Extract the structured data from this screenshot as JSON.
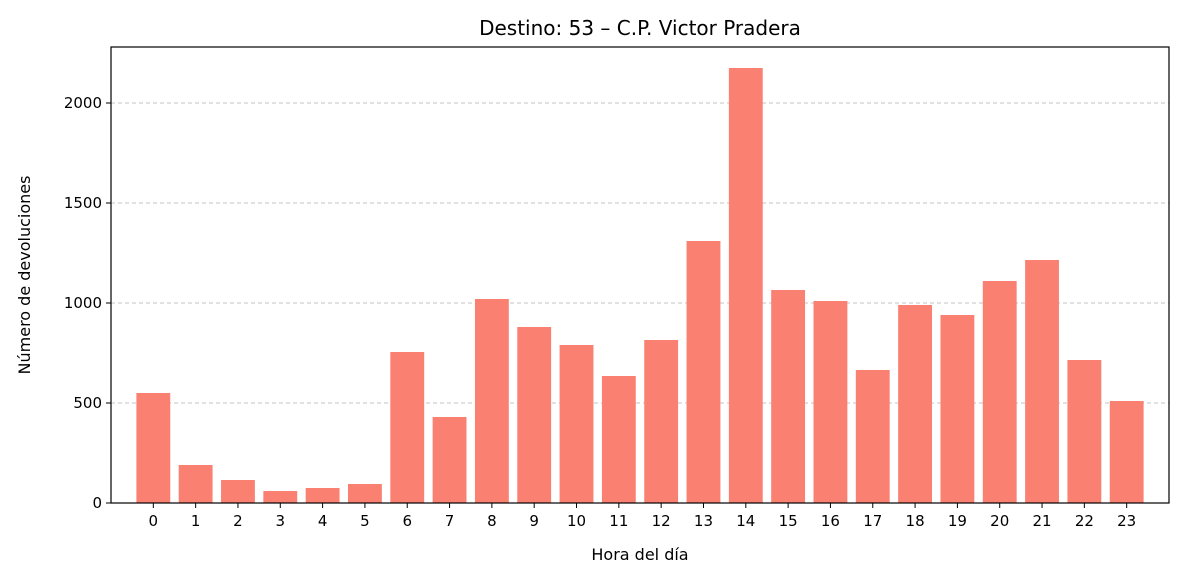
{
  "chart_data": {
    "type": "bar",
    "title": "Destino: 53 – C.P. Victor Pradera",
    "xlabel": "Hora del día",
    "ylabel": "Número de devoluciones",
    "categories": [
      "0",
      "1",
      "2",
      "3",
      "4",
      "5",
      "6",
      "7",
      "8",
      "9",
      "10",
      "11",
      "12",
      "13",
      "14",
      "15",
      "16",
      "17",
      "18",
      "19",
      "20",
      "21",
      "22",
      "23"
    ],
    "values": [
      550,
      190,
      115,
      60,
      75,
      95,
      755,
      430,
      1020,
      880,
      790,
      635,
      815,
      1310,
      2175,
      1065,
      1010,
      665,
      990,
      940,
      1110,
      1215,
      715,
      510
    ],
    "ylim": [
      0,
      2280
    ],
    "yticks": [
      0,
      500,
      1000,
      1500,
      2000
    ],
    "grid": "y-dashed",
    "bar_color": "#fa8072",
    "legend": "none"
  }
}
